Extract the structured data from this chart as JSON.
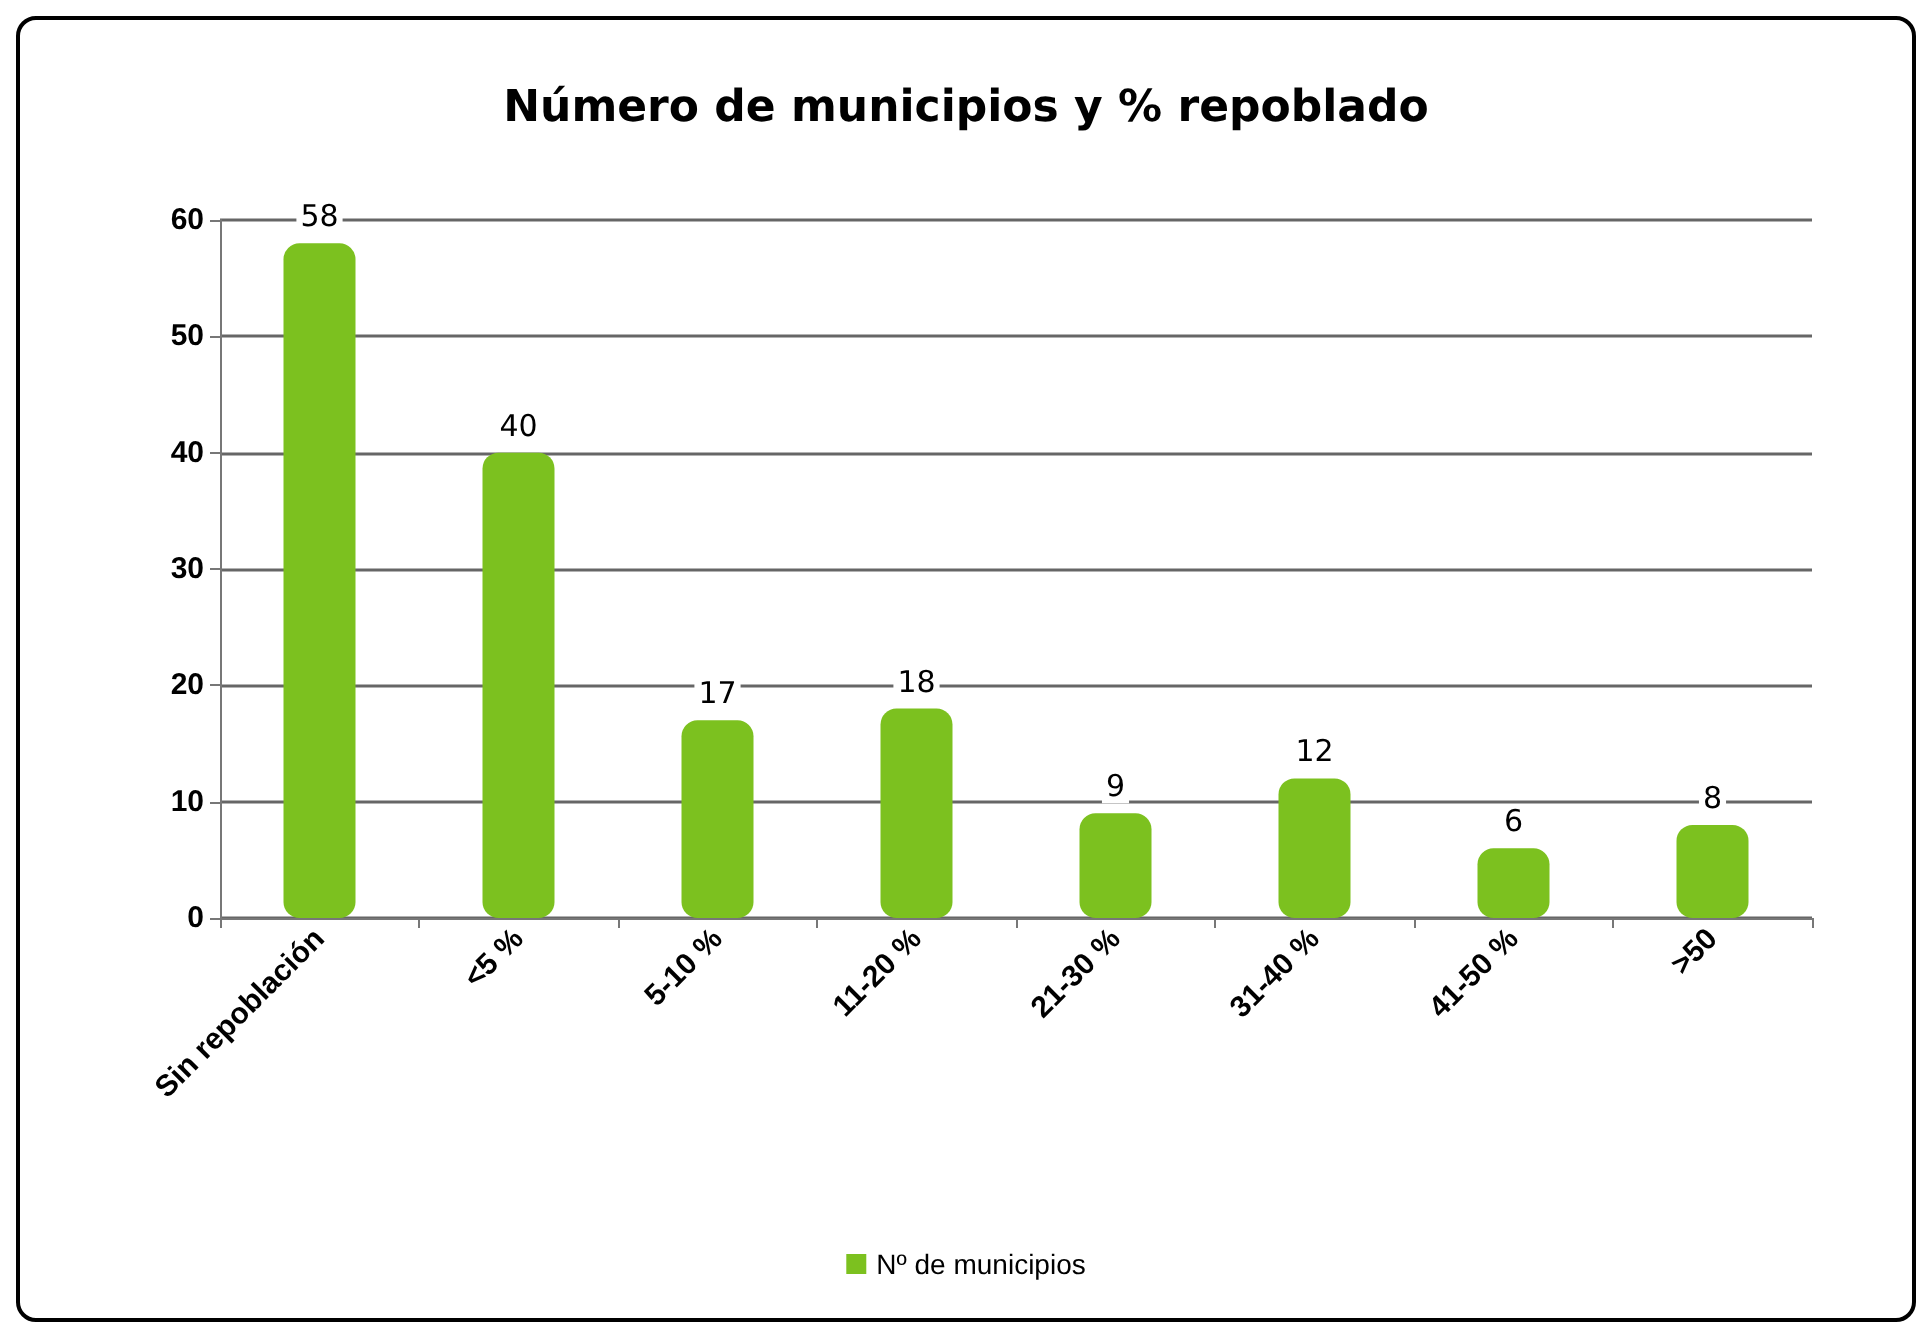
{
  "chart_data": {
    "type": "bar",
    "title": "Número de municipios y % repoblado",
    "categories": [
      "Sin repoblación",
      "<5 %",
      "5-10 %",
      "11-20 %",
      "21-30 %",
      "31-40 %",
      "41-50 %",
      ">50"
    ],
    "series": [
      {
        "name": "Nº de municipios",
        "color": "#7cc11f",
        "values": [
          58,
          40,
          17,
          18,
          9,
          12,
          6,
          8
        ]
      }
    ],
    "ylim": [
      0,
      60
    ],
    "yticks": [
      0,
      10,
      20,
      30,
      40,
      50,
      60
    ],
    "grid": "y",
    "legend": "bottom",
    "data_labels": true
  }
}
